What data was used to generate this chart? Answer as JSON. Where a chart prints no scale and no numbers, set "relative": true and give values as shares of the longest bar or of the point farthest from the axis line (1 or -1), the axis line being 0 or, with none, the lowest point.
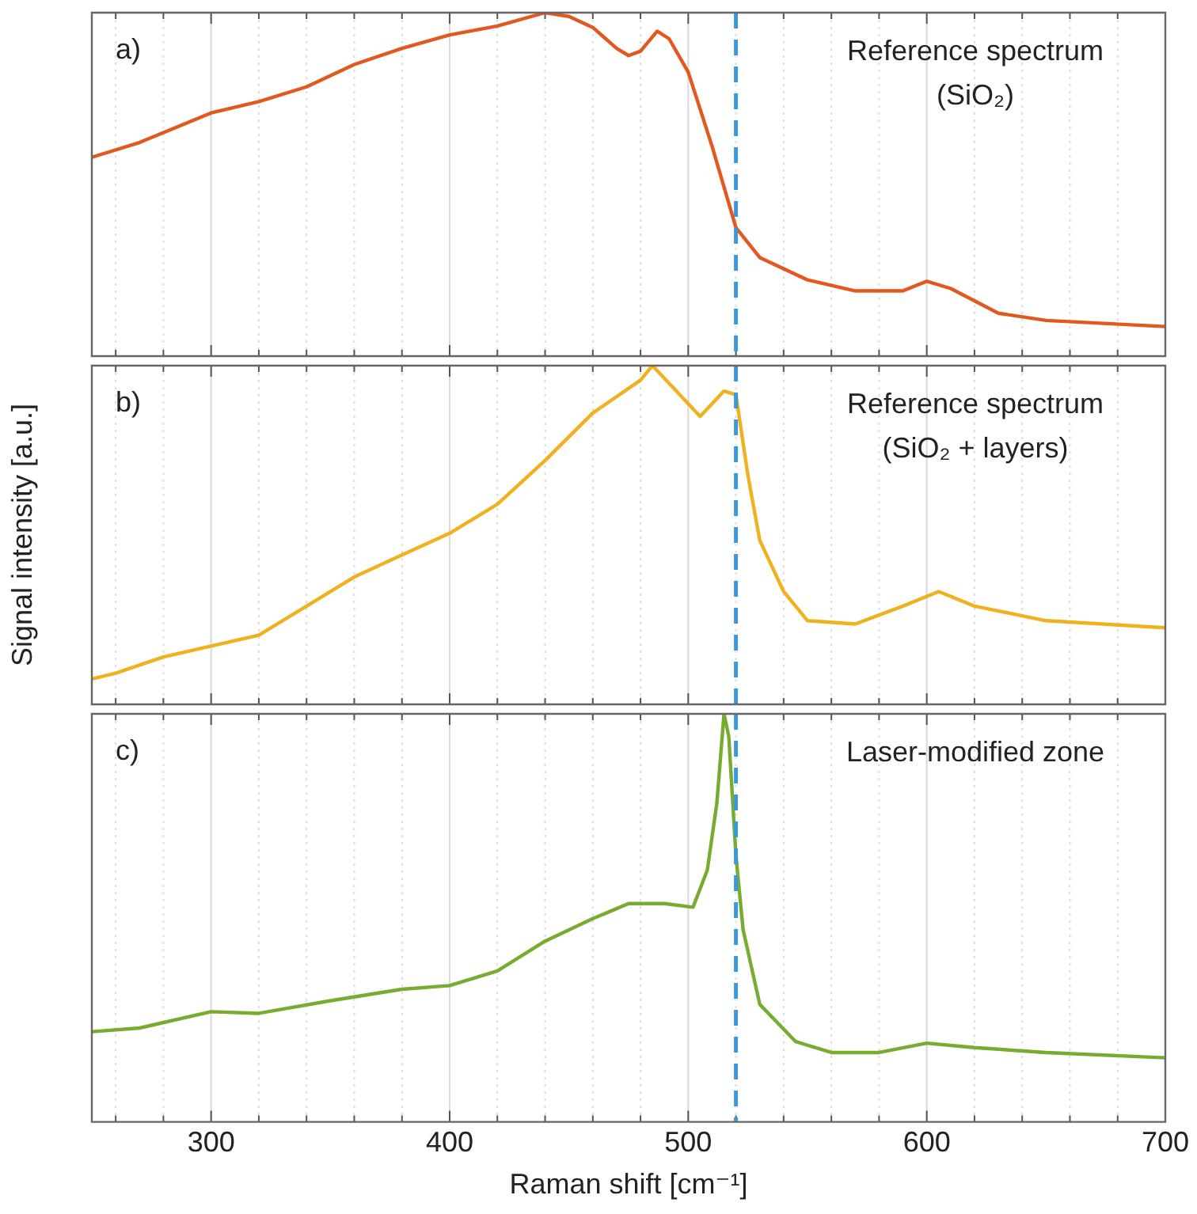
{
  "chart_data": [
    {
      "type": "line",
      "relative": true,
      "x": [
        250,
        270,
        300,
        320,
        340,
        360,
        380,
        400,
        420,
        440,
        450,
        460,
        470,
        475,
        480,
        487,
        492,
        500,
        510,
        520,
        530,
        550,
        570,
        590,
        600,
        610,
        630,
        650,
        700
      ],
      "series": [
        {
          "color": "#e2581f",
          "values": [
            0.579,
            0.622,
            0.708,
            0.741,
            0.784,
            0.849,
            0.896,
            0.935,
            0.961,
            1,
            0.989,
            0.957,
            0.896,
            0.875,
            0.888,
            0.946,
            0.924,
            0.827,
            0.611,
            0.374,
            0.287,
            0.222,
            0.19,
            0.19,
            0.218,
            0.197,
            0.125,
            0.104,
            0.086
          ]
        }
      ],
      "xlim": [
        250,
        700
      ],
      "xticks": [
        {
          "value": 260,
          "label": null
        },
        {
          "value": 280,
          "label": null
        },
        300,
        {
          "value": 320,
          "label": null
        },
        {
          "value": 340,
          "label": null
        },
        {
          "value": 360,
          "label": null
        },
        {
          "value": 380,
          "label": null
        },
        400,
        {
          "value": 420,
          "label": null
        },
        {
          "value": 440,
          "label": null
        },
        {
          "value": 460,
          "label": null
        },
        {
          "value": 480,
          "label": null
        },
        500,
        {
          "value": 520,
          "label": null
        },
        {
          "value": 540,
          "label": null
        },
        {
          "value": 560,
          "label": null
        },
        {
          "value": 580,
          "label": null
        },
        600,
        {
          "value": 620,
          "label": null
        },
        {
          "value": 640,
          "label": null
        },
        {
          "value": 660,
          "label": null
        },
        {
          "value": 680,
          "label": null
        },
        700
      ],
      "tick_labels": false,
      "grid": "x",
      "legend": false,
      "marker": "none",
      "line_style": "solid",
      "ref_lines": [
        {
          "axis": "x",
          "value": 520,
          "color": "#3a9ad9",
          "line_style": "dashed"
        }
      ],
      "annotations": [
        "a)",
        "Reference spectrum (SiO₂)"
      ]
    },
    {
      "type": "line",
      "relative": true,
      "x": [
        250,
        260,
        280,
        300,
        320,
        340,
        360,
        380,
        400,
        420,
        440,
        460,
        480,
        485,
        495,
        505,
        515,
        520,
        525,
        530,
        540,
        550,
        570,
        590,
        605,
        620,
        650,
        700
      ],
      "series": [
        {
          "color": "#efb21e",
          "values": [
            0.075,
            0.092,
            0.14,
            0.172,
            0.204,
            0.29,
            0.376,
            0.441,
            0.505,
            0.591,
            0.72,
            0.86,
            0.957,
            1,
            0.925,
            0.85,
            0.925,
            0.914,
            0.677,
            0.484,
            0.333,
            0.247,
            0.237,
            0.29,
            0.333,
            0.29,
            0.247,
            0.226
          ]
        }
      ],
      "xlim": [
        250,
        700
      ],
      "xticks": [
        {
          "value": 260,
          "label": null
        },
        {
          "value": 280,
          "label": null
        },
        300,
        {
          "value": 320,
          "label": null
        },
        {
          "value": 340,
          "label": null
        },
        {
          "value": 360,
          "label": null
        },
        {
          "value": 380,
          "label": null
        },
        400,
        {
          "value": 420,
          "label": null
        },
        {
          "value": 440,
          "label": null
        },
        {
          "value": 460,
          "label": null
        },
        {
          "value": 480,
          "label": null
        },
        500,
        {
          "value": 520,
          "label": null
        },
        {
          "value": 540,
          "label": null
        },
        {
          "value": 560,
          "label": null
        },
        {
          "value": 580,
          "label": null
        },
        600,
        {
          "value": 620,
          "label": null
        },
        {
          "value": 640,
          "label": null
        },
        {
          "value": 660,
          "label": null
        },
        {
          "value": 680,
          "label": null
        },
        700
      ],
      "tick_labels": false,
      "grid": "x",
      "legend": false,
      "marker": "none",
      "line_style": "solid",
      "ylabel": "Signal intensity [a.u.]",
      "ref_lines": [
        {
          "axis": "x",
          "value": 520,
          "color": "#3a9ad9",
          "line_style": "dashed"
        }
      ],
      "annotations": [
        "b)",
        "Reference spectrum (SiO₂ + layers)"
      ]
    },
    {
      "type": "line",
      "relative": true,
      "x": [
        250,
        270,
        300,
        320,
        350,
        380,
        400,
        420,
        440,
        460,
        475,
        490,
        502,
        508,
        512,
        515,
        517,
        520,
        523,
        530,
        545,
        560,
        580,
        600,
        620,
        650,
        700
      ],
      "series": [
        {
          "color": "#77ac30",
          "values": [
            0.221,
            0.23,
            0.27,
            0.266,
            0.297,
            0.325,
            0.334,
            0.37,
            0.443,
            0.498,
            0.535,
            0.535,
            0.526,
            0.617,
            0.781,
            1,
            0.945,
            0.653,
            0.471,
            0.288,
            0.197,
            0.17,
            0.17,
            0.193,
            0.182,
            0.17,
            0.157
          ]
        }
      ],
      "xlim": [
        250,
        700
      ],
      "xticks": [
        {
          "value": 260,
          "label": null
        },
        {
          "value": 280,
          "label": null
        },
        300,
        {
          "value": 320,
          "label": null
        },
        {
          "value": 340,
          "label": null
        },
        {
          "value": 360,
          "label": null
        },
        {
          "value": 380,
          "label": null
        },
        400,
        {
          "value": 420,
          "label": null
        },
        {
          "value": 440,
          "label": null
        },
        {
          "value": 460,
          "label": null
        },
        {
          "value": 480,
          "label": null
        },
        500,
        {
          "value": 520,
          "label": null
        },
        {
          "value": 540,
          "label": null
        },
        {
          "value": 560,
          "label": null
        },
        {
          "value": 580,
          "label": null
        },
        600,
        {
          "value": 620,
          "label": null
        },
        {
          "value": 640,
          "label": null
        },
        {
          "value": 660,
          "label": null
        },
        {
          "value": 680,
          "label": null
        },
        700
      ],
      "tick_labels": "x",
      "grid": "x",
      "legend": false,
      "marker": "none",
      "line_style": "solid",
      "xlabel": "Raman shift [cm⁻¹]",
      "ref_lines": [
        {
          "axis": "x",
          "value": 520,
          "color": "#3a9ad9",
          "line_style": "dashed"
        }
      ],
      "annotations": [
        "c)",
        "Laser-modified zone"
      ]
    }
  ]
}
